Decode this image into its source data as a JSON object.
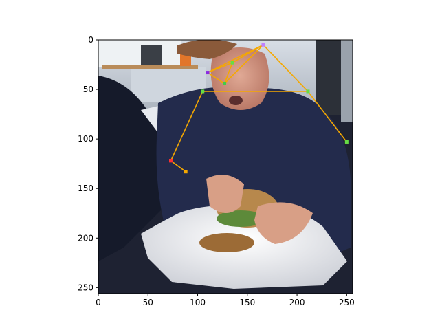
{
  "chart_data": {
    "type": "scatter",
    "title": "",
    "xlabel": "",
    "ylabel": "",
    "xlim": [
      0,
      256
    ],
    "ylim": [
      256,
      0
    ],
    "y_inverted": true,
    "grid": false,
    "background": "photo: man in dark blue sweater eating a sandwich over white paper wrapping",
    "xticks": [
      0,
      50,
      100,
      150,
      200,
      250
    ],
    "yticks": [
      0,
      50,
      100,
      150,
      200,
      250
    ],
    "skeleton_color": "#f5a800",
    "keypoints": [
      {
        "x": 166,
        "y": 5,
        "color": "#c080ff"
      },
      {
        "x": 135,
        "y": 23,
        "color": "#66dd44"
      },
      {
        "x": 110,
        "y": 33,
        "color": "#8a2be2"
      },
      {
        "x": 127,
        "y": 44,
        "color": "#44cc44"
      },
      {
        "x": 105,
        "y": 52,
        "color": "#66dd44"
      },
      {
        "x": 211,
        "y": 52,
        "color": "#66dd44"
      },
      {
        "x": 250,
        "y": 103,
        "color": "#66dd44"
      },
      {
        "x": 73,
        "y": 122,
        "color": "#ff3030"
      },
      {
        "x": 88,
        "y": 133,
        "color": "#f5a800"
      }
    ],
    "edges": [
      [
        0,
        1
      ],
      [
        1,
        2
      ],
      [
        2,
        3
      ],
      [
        3,
        1
      ],
      [
        0,
        2
      ],
      [
        3,
        0
      ],
      [
        4,
        5
      ],
      [
        0,
        5
      ],
      [
        5,
        6
      ],
      [
        4,
        7
      ],
      [
        7,
        8
      ]
    ]
  }
}
